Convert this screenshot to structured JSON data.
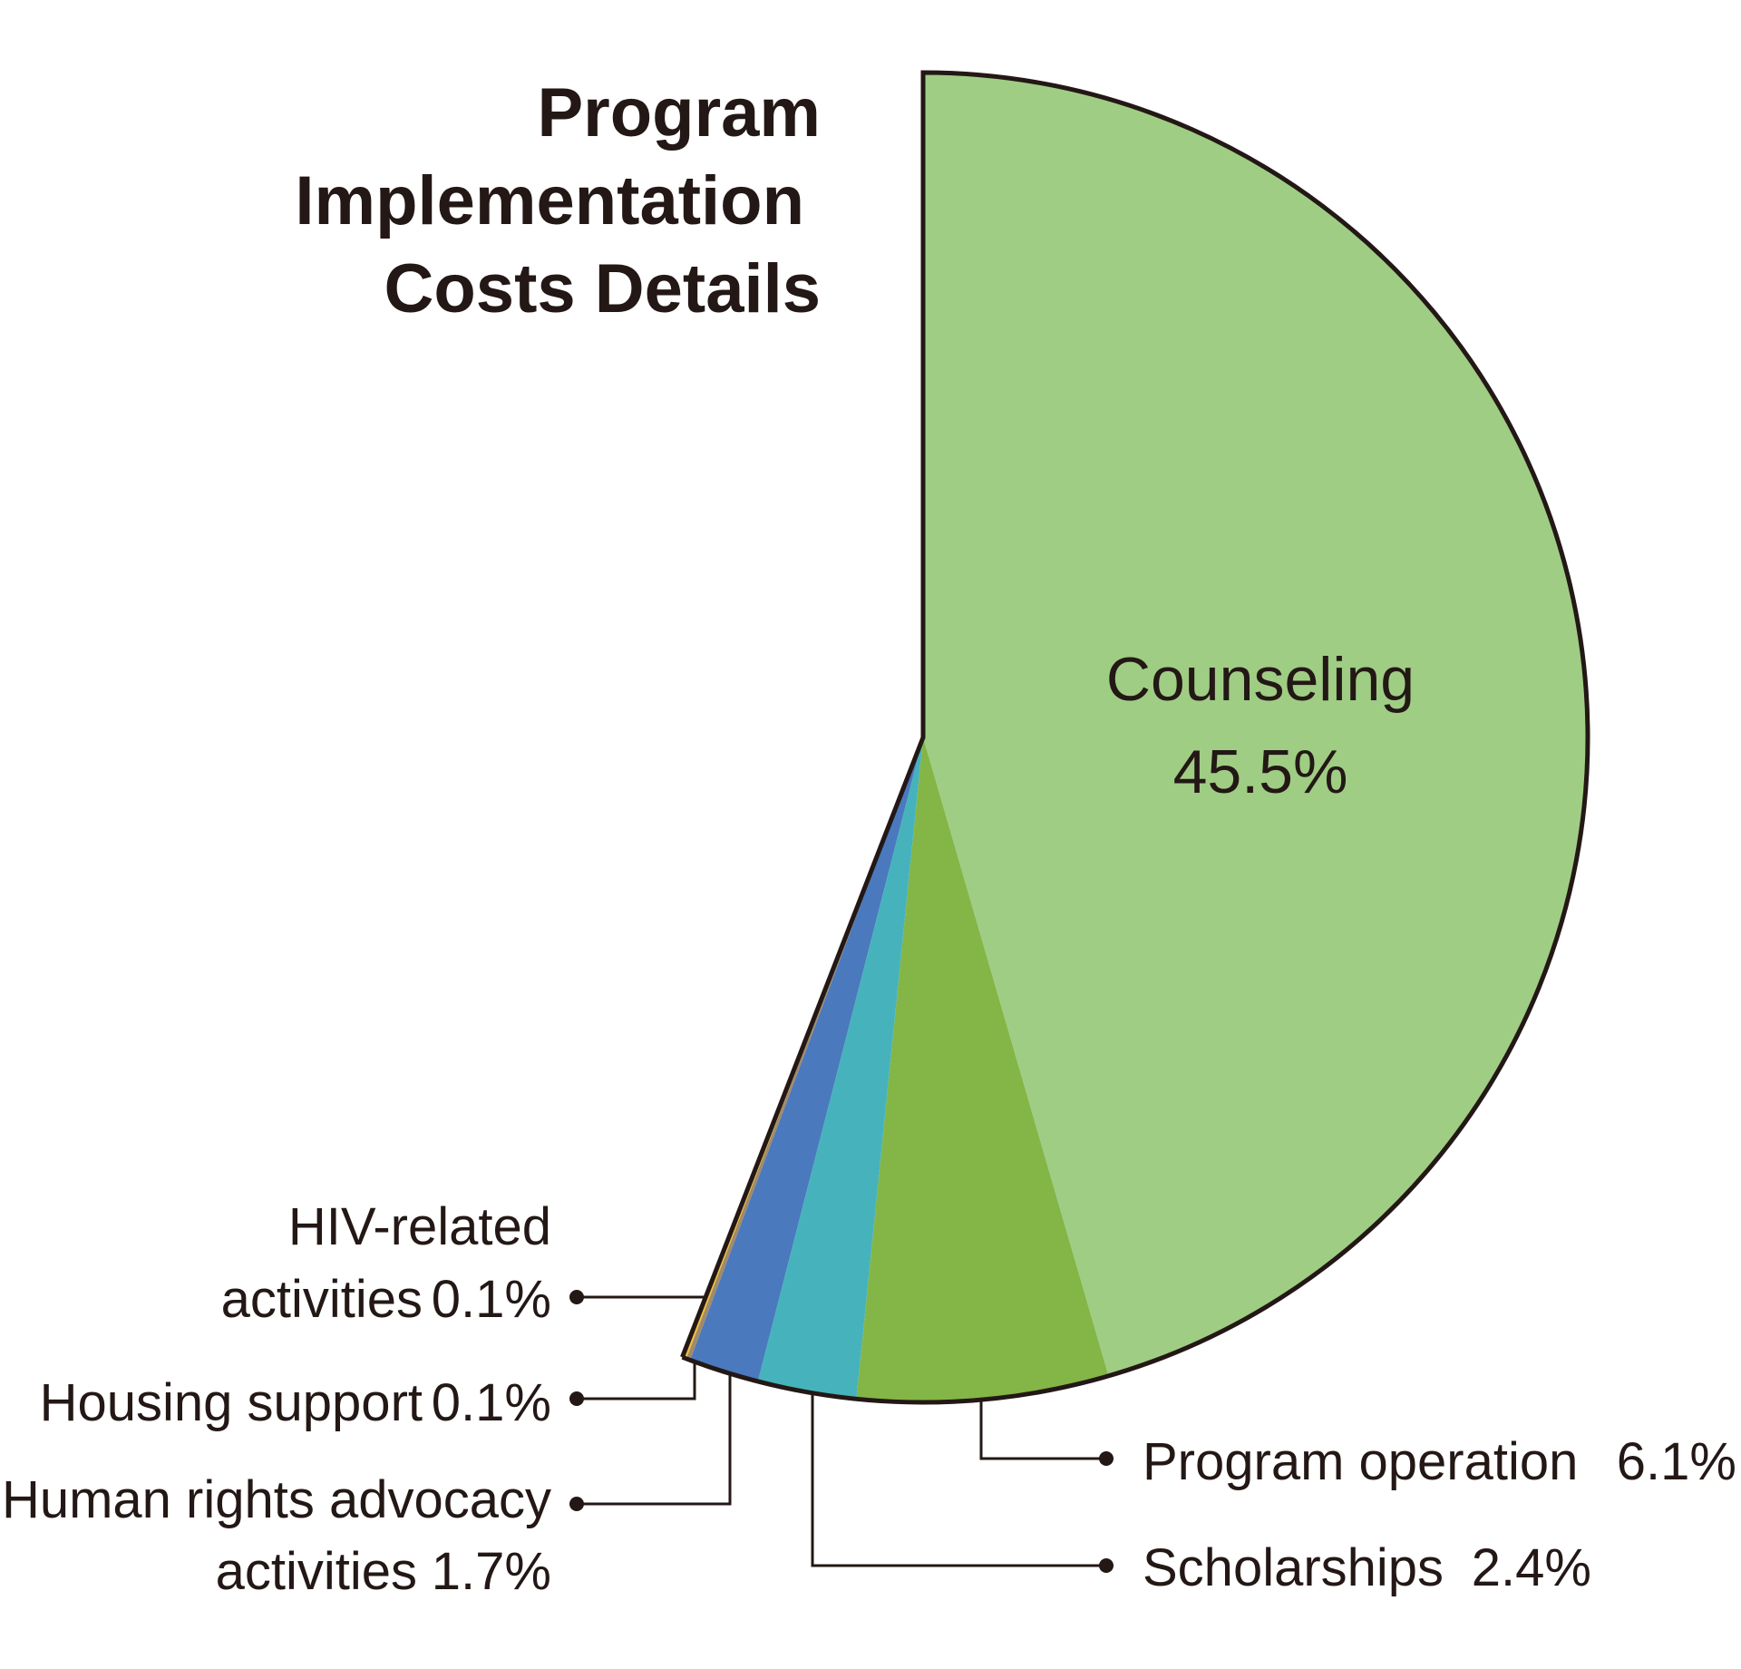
{
  "chart_data": {
    "type": "pie",
    "title_lines": [
      "Program",
      "Implementation",
      "Costs Details"
    ],
    "slices": [
      {
        "key": "counseling",
        "label": "Counseling",
        "percent": 45.5,
        "value_text": "45.5%",
        "color": "#9fcd84"
      },
      {
        "key": "program_operation",
        "label": "Program operation",
        "percent": 6.1,
        "value_text": "6.1%",
        "color": "#84b547"
      },
      {
        "key": "scholarships",
        "label": "Scholarships",
        "percent": 2.4,
        "value_text": "2.4%",
        "color": "#46b3bc"
      },
      {
        "key": "human_rights",
        "label": "Human rights advocacy activities",
        "label_lines": [
          "Human rights advocacy",
          "activities"
        ],
        "percent": 1.7,
        "value_text": "1.7%",
        "color": "#4a79bd"
      },
      {
        "key": "housing",
        "label": "Housing support",
        "percent": 0.1,
        "value_text": "0.1%",
        "color": "#a08a6a"
      },
      {
        "key": "hiv",
        "label": "HIV-related activities",
        "label_lines": [
          "HIV-related",
          "activities"
        ],
        "percent": 0.1,
        "value_text": "0.1%",
        "color": "#f0bf3c"
      }
    ],
    "start_angle": "12 o'clock",
    "direction": "clockwise",
    "outline_color": "#231815"
  }
}
